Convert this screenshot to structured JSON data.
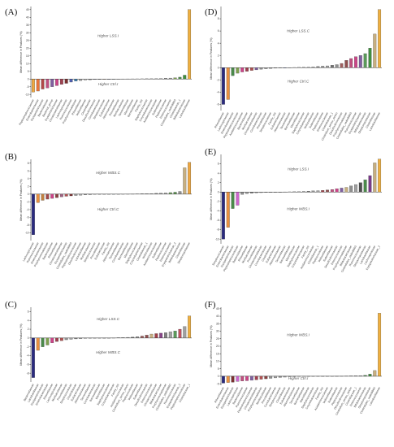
{
  "figure": {
    "background": "#ffffff"
  },
  "chart_data": [
    {
      "panel": "(A)",
      "type": "bar",
      "ylabel": "Mean difference in Features (%)",
      "upper_label": "Higher LSS.I",
      "lower_label": "Higher Ctrl.I",
      "ylim": [
        -12,
        47
      ],
      "yticks": [
        -10,
        -5,
        0,
        5,
        10,
        15,
        20,
        25,
        30,
        35,
        40,
        45
      ],
      "categories": [
        "Peptostreptococcaceae",
        "Enterobacteriaceae",
        "Erysipelotrichaceae",
        "Bacteroidaceae",
        "Bacterial_group",
        "Erysipelotrichaceae",
        "Christensenellaceae",
        "Lachnospiraceae",
        "Ruminococcaceae",
        "Porphyromonadaceae",
        "Rikenellaceae",
        "Veillonellaceae",
        "Clostridiaceae",
        "Desulfovibrionaceae",
        "Coriobacteriaceae",
        "Streptococcaceae",
        "Eubacteriaceae",
        "Akkermansiaceae",
        "Prevotellaceae",
        "Muribaculaceae",
        "Tannerellaceae",
        "Marinifilaceae",
        "Barnesiellaceae",
        "Family_XIII",
        "Staphylococcaceae",
        "Corynebacteriaceae",
        "Acidaminococcaceae",
        "Sutterellaceae",
        "Peptococcaceae",
        "Enterococcaceae",
        "Clostridiales_vadinBB60",
        "Clostridiaceae_1",
        "Bifidobacteriaceae",
        "Lactobacillaceae"
      ],
      "values": [
        -8.5,
        -7.8,
        -6.5,
        -5.8,
        -5.0,
        -4.3,
        -3.5,
        -2.8,
        -2.0,
        -1.4,
        -1.0,
        -0.7,
        -0.5,
        -0.35,
        -0.25,
        -0.15,
        -0.08,
        -0.04,
        0.04,
        0.06,
        0.08,
        0.1,
        0.12,
        0.15,
        0.18,
        0.22,
        0.28,
        0.35,
        0.45,
        0.6,
        0.8,
        1.2,
        2.5,
        45.0
      ],
      "colors": [
        "#f0a840",
        "#e8743b",
        "#b04848",
        "#c05080",
        "#8060a0",
        "#cc4488",
        "#a04050",
        "#7a3030",
        "#5060b0",
        "#4080b0",
        "#a0a0a0",
        "#c0c0c0",
        "#808080",
        "#9090a0",
        "#606060",
        "#a08060",
        "#707090",
        "#90a0a0",
        "#909090",
        "#a0a0a0",
        "#808080",
        "#909090",
        "#a0a0a0",
        "#b0b0b0",
        "#909090",
        "#a0a0a0",
        "#888888",
        "#a0a0a0",
        "#707070",
        "#909090",
        "#7fa050",
        "#4a8a4a",
        "#3f8f3f",
        "#f0b040"
      ]
    },
    {
      "panel": "(B)",
      "type": "bar",
      "ylabel": "Mean difference in Features (%)",
      "upper_label": "Higher WBS.C",
      "lower_label": "Higher Ctrl.C",
      "ylim": [
        -12,
        9
      ],
      "yticks": [
        -10,
        -8,
        -6,
        -4,
        -2,
        0,
        2,
        4,
        6,
        8
      ],
      "categories": [
        "Lachnospiraceae",
        "Ruminococcaceae",
        "Enterobacteriaceae",
        "Porphyromonadaceae",
        "Bacteroidaceae",
        "Rikenellaceae",
        "Christensenellaceae",
        "Erysipelotrichaceae",
        "Clostridiales_vadinBB60",
        "Peptostreptococcaceae",
        "Desulfovibrionaceae",
        "Lactobacillaceae",
        "Muribaculaceae",
        "Streptococcaceae",
        "Prevotellaceae",
        "Eubacteriaceae",
        "Family_XIII",
        "Akkermansiaceae",
        "Tannerellaceae",
        "Coriobacteriaceae",
        "Barnesiellaceae",
        "Marinifilaceae",
        "Staphylococcaceae",
        "Corynebacteriaceae",
        "Clostridiaceae_1",
        "Veillonellaceae",
        "Acidaminococcaceae",
        "Sutterellaceae",
        "Peptococcaceae",
        "Enterococcaceae",
        "Erysipelotrichaceae_2",
        "Bifidobacteriaceae",
        "Clostridiaceae",
        "Streptomycetaceae"
      ],
      "values": [
        -10.5,
        -2.2,
        -1.6,
        -1.3,
        -1.1,
        -0.9,
        -0.7,
        -0.55,
        -0.45,
        -0.35,
        -0.28,
        -0.2,
        -0.15,
        -0.1,
        -0.07,
        -0.04,
        -0.02,
        0.02,
        0.03,
        0.04,
        0.05,
        0.06,
        0.08,
        0.1,
        0.12,
        0.15,
        0.2,
        0.25,
        0.3,
        0.4,
        0.5,
        0.7,
        6.8,
        8.2
      ],
      "colors": [
        "#2a2a80",
        "#e89040",
        "#c08040",
        "#a04848",
        "#cc4488",
        "#884040",
        "#a06080",
        "#b05050",
        "#7a3030",
        "#909090",
        "#a0a0a0",
        "#808080",
        "#909090",
        "#a0a0a0",
        "#707070",
        "#909090",
        "#a0a0a0",
        "#8090a0",
        "#909090",
        "#a0a0a0",
        "#888888",
        "#909090",
        "#a0a0a0",
        "#707070",
        "#909090",
        "#a0a0a0",
        "#808080",
        "#909090",
        "#a0a0a0",
        "#70a060",
        "#5a9050",
        "#909090",
        "#c8b080",
        "#f0a840"
      ]
    },
    {
      "panel": "(C)",
      "type": "bar",
      "ylabel": "Mean difference in Features (%)",
      "upper_label": "Higher LSS.C",
      "lower_label": "Higher WBS.C",
      "ylim": [
        -10,
        7
      ],
      "yticks": [
        -8,
        -6,
        -4,
        -2,
        0,
        2,
        4,
        6
      ],
      "categories": [
        "Bacteroidaceae",
        "Lactobacillaceae",
        "Erysipelotrichaceae",
        "Enterobacteriaceae",
        "Rikenellaceae",
        "Lachnospiraceae",
        "Muribaculaceae",
        "Prevotellaceae",
        "Streptococcaceae",
        "Clostridiaceae",
        "Eubacteriaceae",
        "Akkermansiaceae",
        "Tannerellaceae",
        "Coriobacteriaceae",
        "Barnesiellaceae",
        "Marinifilaceae",
        "Staphylococcaceae",
        "Corynebacteriaceae",
        "Family_XIII",
        "Acidaminococcaceae",
        "Clostridium_sensu_stricto",
        "Peptococcaceae",
        "Veillonellaceae",
        "Sutterellaceae",
        "Desulfovibrionaceae",
        "Enterococcaceae",
        "Christensenellaceae",
        "Bifidobacteriaceae",
        "Porphyromonadaceae",
        "Clostridiales_vadinBB60",
        "Ruminococcaceae",
        "Erysipelotrichaceae_2",
        "Peptostreptococcaceae",
        "Clostridiaceae_1"
      ],
      "values": [
        -9.0,
        -2.8,
        -2.0,
        -1.6,
        -1.1,
        -0.8,
        -0.6,
        -0.4,
        -0.3,
        -0.2,
        -0.15,
        -0.1,
        -0.06,
        -0.03,
        -0.01,
        0.01,
        0.03,
        0.05,
        0.08,
        0.1,
        0.15,
        0.2,
        0.3,
        0.45,
        0.65,
        0.9,
        1.0,
        1.1,
        1.2,
        1.4,
        1.6,
        2.0,
        2.6,
        5.0
      ],
      "colors": [
        "#2a2a80",
        "#e89040",
        "#4a8a4a",
        "#7fa050",
        "#cc4488",
        "#a04050",
        "#b05050",
        "#909090",
        "#a0a0a0",
        "#808080",
        "#909090",
        "#a0a0a0",
        "#888888",
        "#909090",
        "#a0a0a0",
        "#707070",
        "#909090",
        "#a0a0a0",
        "#808080",
        "#909090",
        "#a0a0a0",
        "#707070",
        "#909090",
        "#a06060",
        "#905050",
        "#c8b080",
        "#a04048",
        "#884488",
        "#808080",
        "#a0a0a0",
        "#5a9a5a",
        "#c05060",
        "#a0a0a0",
        "#f0b040"
      ]
    },
    {
      "panel": "(D)",
      "type": "bar",
      "ylabel": "Mean difference in Features (%)",
      "upper_label": "Higher LSS.C",
      "lower_label": "Higher Ctrl.C",
      "ylim": [
        -7,
        10
      ],
      "yticks": [
        -6,
        -4,
        -2,
        0,
        2,
        4,
        6,
        8
      ],
      "categories": [
        "Rikenellaceae",
        "Lachnospiraceae",
        "Enterobacteriaceae",
        "Peptostreptococcaceae",
        "Acidaminococcaceae",
        "Bacteroidaceae",
        "Muribaculaceae",
        "Christensenellaceae",
        "Coriobacteriaceae",
        "Prevotellaceae",
        "Streptococcaceae",
        "Family_XIII",
        "Eubacteriaceae",
        "Akkermansiaceae",
        "Tannerellaceae",
        "Barnesiellaceae",
        "Marinifilaceae",
        "Staphylococcaceae",
        "Corynebacteriaceae",
        "Veillonellaceae",
        "Sutterellaceae",
        "Peptococcaceae",
        "Enterococcaceae",
        "Clostridiaceae_1",
        "Clostridium_sensu_stricto",
        "Desulfovibrionaceae",
        "Porphyromonadaceae",
        "Clostridiales_vadinBB60",
        "Ruminococcaceae",
        "Erysipelotrichaceae",
        "Bifidobacteriaceae",
        "Streptomycetaceae",
        "Clostridiaceae",
        "Lactobacillaceae"
      ],
      "values": [
        -6.0,
        -5.2,
        -1.3,
        -0.9,
        -0.7,
        -0.6,
        -0.45,
        -0.35,
        -0.25,
        -0.18,
        -0.12,
        -0.08,
        -0.04,
        -0.02,
        0.02,
        0.04,
        0.06,
        0.08,
        0.1,
        0.15,
        0.2,
        0.25,
        0.3,
        0.4,
        0.5,
        0.7,
        1.2,
        1.5,
        1.8,
        2.0,
        2.3,
        3.2,
        5.5,
        9.5
      ],
      "colors": [
        "#2a2a80",
        "#e89040",
        "#4a8a4a",
        "#7fa050",
        "#cc4488",
        "#a04050",
        "#b05050",
        "#8060a0",
        "#909090",
        "#a0a0a0",
        "#808080",
        "#909090",
        "#a0a0a0",
        "#5060b0",
        "#888888",
        "#909090",
        "#a0a0a0",
        "#707070",
        "#909090",
        "#a0a0a0",
        "#808080",
        "#909090",
        "#a0a0a0",
        "#707070",
        "#909090",
        "#a06060",
        "#905050",
        "#c05080",
        "#cc4488",
        "#8060a0",
        "#5a9a5a",
        "#3f8f3f",
        "#c8b080",
        "#f0b040"
      ]
    },
    {
      "panel": "(E)",
      "type": "bar",
      "ylabel": "Mean difference in Features (%)",
      "upper_label": "Higher LSS.I",
      "lower_label": "Higher WBS.I",
      "ylim": [
        -11,
        8
      ],
      "yticks": [
        -10,
        -8,
        -6,
        -4,
        -2,
        0,
        2,
        4,
        6
      ],
      "categories": [
        "Streptococcaceae",
        "Enterobacteriaceae",
        "Erysipelotrichaceae",
        "Peptostreptococcaceae",
        "Bacteroidaceae",
        "Rikenellaceae",
        "Muribaculaceae",
        "Prevotellaceae",
        "Christensenellaceae",
        "Coriobacteriaceae",
        "Clostridiaceae",
        "Eubacteriaceae",
        "Akkermansiaceae",
        "Tannerellaceae",
        "Barnesiellaceae",
        "Marinifilaceae",
        "Staphylococcaceae",
        "Corynebacteriaceae",
        "Family_XIII",
        "Acidaminococcaceae",
        "Clostridiaceae_1",
        "Peptococcaceae",
        "Veillonellaceae",
        "Sutterellaceae",
        "Desulfovibrionaceae",
        "Enterococcaceae",
        "Porphyromonadaceae",
        "Bifidobacteriaceae",
        "Clostridiales_vadinBB60",
        "Ruminococcaceae",
        "Streptomycetaceae",
        "Lactobacillaceae",
        "Lachnospiraceae",
        "Erysipelotrichaceae_2"
      ],
      "values": [
        -10.0,
        -7.5,
        -3.5,
        -2.8,
        -0.5,
        -0.35,
        -0.25,
        -0.18,
        -0.12,
        -0.08,
        -0.04,
        -0.02,
        0.02,
        0.04,
        0.06,
        0.08,
        0.1,
        0.15,
        0.2,
        0.25,
        0.3,
        0.35,
        0.45,
        0.55,
        0.7,
        0.85,
        1.0,
        1.3,
        1.6,
        2.0,
        2.6,
        3.5,
        6.2,
        7.0
      ],
      "colors": [
        "#2a2a80",
        "#e89040",
        "#4a8a4a",
        "#cc66cc",
        "#909090",
        "#a0a0a0",
        "#808080",
        "#909090",
        "#a0a0a0",
        "#888888",
        "#909090",
        "#a0a0a0",
        "#707070",
        "#909090",
        "#a0a0a0",
        "#808080",
        "#909090",
        "#a0a0a0",
        "#707070",
        "#909090",
        "#a0a0a0",
        "#a04048",
        "#905050",
        "#c05080",
        "#cc4488",
        "#8060a0",
        "#c8b080",
        "#909090",
        "#a0a0a0",
        "#505050",
        "#4a8a4a",
        "#7a3a8a",
        "#c8b080",
        "#f0b040"
      ]
    },
    {
      "panel": "(F)",
      "type": "bar",
      "ylabel": "Mean difference in Features (%)",
      "upper_label": "Higher WBS.I",
      "lower_label": "Higher Ctrl.I",
      "ylim": [
        -6,
        46
      ],
      "yticks": [
        -5,
        0,
        5,
        10,
        15,
        20,
        25,
        30,
        35,
        40,
        45
      ],
      "categories": [
        "Rikenellaceae",
        "Enterobacteriaceae",
        "Erysipelotrichaceae",
        "Lachnospiraceae",
        "Bacteroidaceae",
        "Ruminococcaceae",
        "Peptostreptococcaceae",
        "Christensenellaceae",
        "Porphyromonadaceae",
        "Muribaculaceae",
        "Prevotellaceae",
        "Coriobacteriaceae",
        "Streptococcaceae",
        "Clostridiaceae",
        "Eubacteriaceae",
        "Akkermansiaceae",
        "Tannerellaceae",
        "Barnesiellaceae",
        "Marinifilaceae",
        "Staphylococcaceae",
        "Corynebacteriaceae",
        "Family_XIII",
        "Acidaminococcaceae",
        "Veillonellaceae",
        "Sutterellaceae",
        "Peptococcaceae",
        "Desulfovibrionaceae",
        "Clostridium_sensu_stricto",
        "Clostridiaceae_1",
        "Enterococcaceae",
        "Bifidobacteriaceae",
        "Streptomycetaceae",
        "Clostridiales_vadinBB60",
        "Lactobacillaceae"
      ],
      "values": [
        -4.6,
        -4.2,
        -4.0,
        -3.5,
        -3.2,
        -3.0,
        -2.7,
        -2.4,
        -2.0,
        -1.7,
        -1.4,
        -1.1,
        -0.8,
        -0.6,
        -0.45,
        -0.3,
        -0.2,
        -0.12,
        -0.06,
        -0.02,
        0.02,
        0.05,
        0.08,
        0.1,
        0.12,
        0.15,
        0.2,
        0.25,
        0.3,
        0.4,
        0.6,
        1.4,
        3.8,
        42.0
      ],
      "colors": [
        "#2a2a80",
        "#e89040",
        "#7a3030",
        "#cc66cc",
        "#c05080",
        "#cc4488",
        "#8060a0",
        "#a04050",
        "#b05050",
        "#884040",
        "#909090",
        "#a0a0a0",
        "#808080",
        "#909090",
        "#a0a0a0",
        "#888888",
        "#909090",
        "#a0a0a0",
        "#707070",
        "#909090",
        "#a0a0a0",
        "#808080",
        "#909090",
        "#a0a0a0",
        "#707070",
        "#909090",
        "#a0a0a0",
        "#808080",
        "#909090",
        "#a0a0a0",
        "#4a8a4a",
        "#3f8f3f",
        "#c8b080",
        "#f0b040"
      ]
    }
  ]
}
